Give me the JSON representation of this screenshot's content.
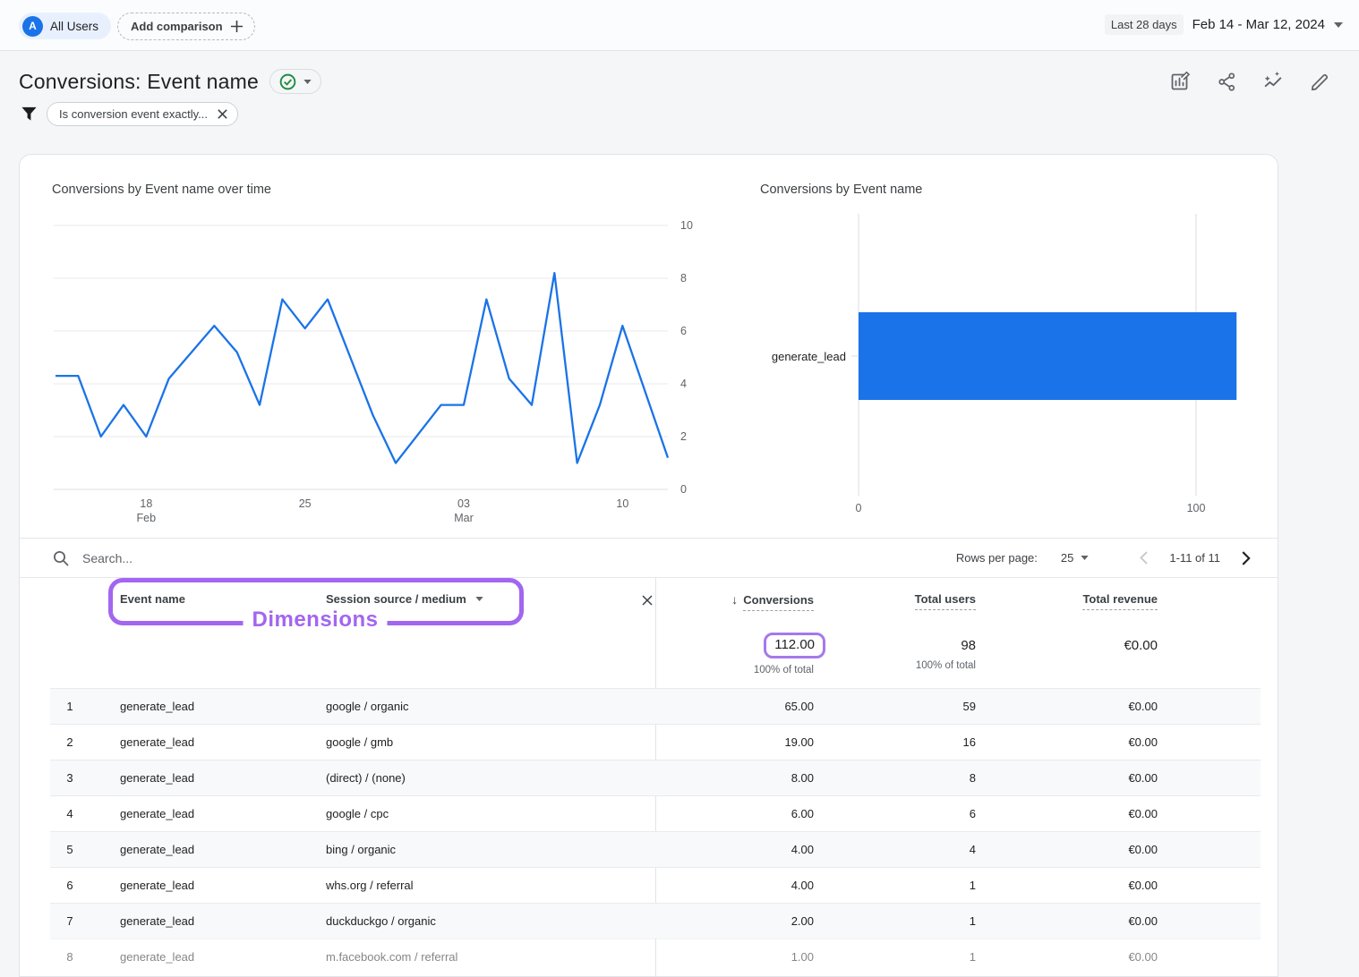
{
  "topbar": {
    "audience_avatar": "A",
    "audience_chip": "All Users",
    "add_comparison": "Add comparison",
    "date_preset": "Last 28 days",
    "date_range": "Feb 14 - Mar 12, 2024"
  },
  "header": {
    "title": "Conversions: Event name",
    "filter_chip": "Is conversion event exactly...",
    "action_icons": [
      "customize-report-icon",
      "share-icon",
      "insights-icon",
      "edit-icon"
    ],
    "accent_green": "#1e8e3e"
  },
  "chart_data": [
    {
      "type": "line",
      "title": "Conversions by Event name over time",
      "color": "#1a73e8",
      "ylim": [
        0,
        10
      ],
      "yticks": [
        0,
        2,
        4,
        6,
        8,
        10
      ],
      "x": [
        "Feb 14",
        "Feb 15",
        "Feb 16",
        "Feb 17",
        "Feb 18",
        "Feb 19",
        "Feb 20",
        "Feb 21",
        "Feb 22",
        "Feb 23",
        "Feb 24",
        "Feb 25",
        "Feb 26",
        "Feb 27",
        "Feb 28",
        "Feb 29",
        "Mar 01",
        "Mar 02",
        "Mar 03",
        "Mar 04",
        "Mar 05",
        "Mar 06",
        "Mar 07",
        "Mar 08",
        "Mar 09",
        "Mar 10",
        "Mar 11",
        "Mar 12"
      ],
      "values": [
        4.3,
        4.3,
        2,
        3.2,
        2,
        4.2,
        5.2,
        6.2,
        5.2,
        3.2,
        7.2,
        6.1,
        7.2,
        5,
        2.8,
        1,
        2.1,
        3.2,
        3.2,
        7.2,
        4.2,
        3.2,
        8.2,
        1,
        3.2,
        6.2,
        3.7,
        1.2
      ],
      "xticks": [
        {
          "index": 4,
          "label": "18",
          "sub": "Feb"
        },
        {
          "index": 11,
          "label": "25",
          "sub": ""
        },
        {
          "index": 18,
          "label": "03",
          "sub": "Mar"
        },
        {
          "index": 25,
          "label": "10",
          "sub": ""
        }
      ],
      "grid": true,
      "legend": "none"
    },
    {
      "type": "bar",
      "orientation": "horizontal",
      "title": "Conversions by Event name",
      "color": "#1a73e8",
      "categories": [
        "generate_lead"
      ],
      "values": [
        112
      ],
      "xlim": [
        0,
        118
      ],
      "xticks": [
        0,
        100
      ],
      "grid": true,
      "legend": "none"
    }
  ],
  "toolbar": {
    "search_placeholder": "Search...",
    "rows_per_page_label": "Rows per page:",
    "rows_per_page_value": "25",
    "pagination": "1-11 of 11"
  },
  "table": {
    "columns": {
      "event": "Event name",
      "source": "Session source / medium",
      "conversions": "Conversions",
      "users": "Total users",
      "revenue": "Total revenue"
    },
    "totals": {
      "conversions": "112.00",
      "conversions_caption": "100% of total",
      "users": "98",
      "users_caption": "100% of total",
      "revenue": "€0.00"
    },
    "rows": [
      {
        "n": "1",
        "event": "generate_lead",
        "source": "google / organic",
        "conversions": "65.00",
        "users": "59",
        "revenue": "€0.00"
      },
      {
        "n": "2",
        "event": "generate_lead",
        "source": "google / gmb",
        "conversions": "19.00",
        "users": "16",
        "revenue": "€0.00"
      },
      {
        "n": "3",
        "event": "generate_lead",
        "source": "(direct) / (none)",
        "conversions": "8.00",
        "users": "8",
        "revenue": "€0.00"
      },
      {
        "n": "4",
        "event": "generate_lead",
        "source": "google / cpc",
        "conversions": "6.00",
        "users": "6",
        "revenue": "€0.00"
      },
      {
        "n": "5",
        "event": "generate_lead",
        "source": "bing / organic",
        "conversions": "4.00",
        "users": "4",
        "revenue": "€0.00"
      },
      {
        "n": "6",
        "event": "generate_lead",
        "source": "whs.org / referral",
        "conversions": "4.00",
        "users": "1",
        "revenue": "€0.00"
      },
      {
        "n": "7",
        "event": "generate_lead",
        "source": "duckduckgo / organic",
        "conversions": "2.00",
        "users": "1",
        "revenue": "€0.00"
      },
      {
        "n": "8",
        "event": "generate_lead",
        "source": "m.facebook.com / referral",
        "conversions": "1.00",
        "users": "1",
        "revenue": "€0.00"
      }
    ]
  },
  "annotations": {
    "dimensions_label": "Dimensions",
    "purple": "#a266f0"
  }
}
